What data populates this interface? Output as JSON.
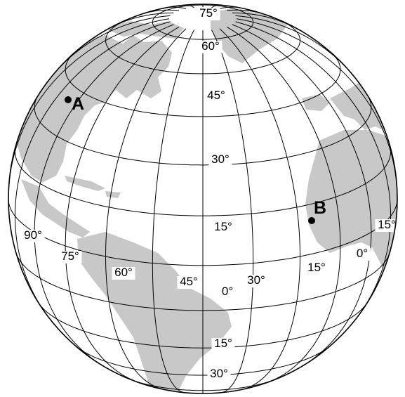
{
  "map": {
    "latitude_labels": [
      {
        "id": "lat-75",
        "text": "75°"
      },
      {
        "id": "lat-60",
        "text": "60°"
      },
      {
        "id": "lat-45",
        "text": "45°"
      },
      {
        "id": "lat-30-n",
        "text": "30°"
      },
      {
        "id": "lat-15-n",
        "text": "15°"
      },
      {
        "id": "lat-0",
        "text": "0°"
      },
      {
        "id": "lat-15-s",
        "text": "15°"
      },
      {
        "id": "lat-30-s",
        "text": "30°"
      }
    ],
    "longitude_labels": [
      {
        "id": "lon-90",
        "text": "90°"
      },
      {
        "id": "lon-75",
        "text": "75°"
      },
      {
        "id": "lon-60",
        "text": "60°"
      },
      {
        "id": "lon-45",
        "text": "45°"
      },
      {
        "id": "lon-30",
        "text": "30°"
      },
      {
        "id": "lon-15-w",
        "text": "15°"
      },
      {
        "id": "lon-0",
        "text": "0°"
      },
      {
        "id": "lon-15-e",
        "text": "15°"
      }
    ],
    "points": [
      {
        "id": "point-a",
        "label": "A"
      },
      {
        "id": "point-b",
        "label": "B"
      }
    ],
    "colors": {
      "land": "#c8c8c8",
      "ocean": "#ffffff",
      "grid": "#000000"
    }
  }
}
